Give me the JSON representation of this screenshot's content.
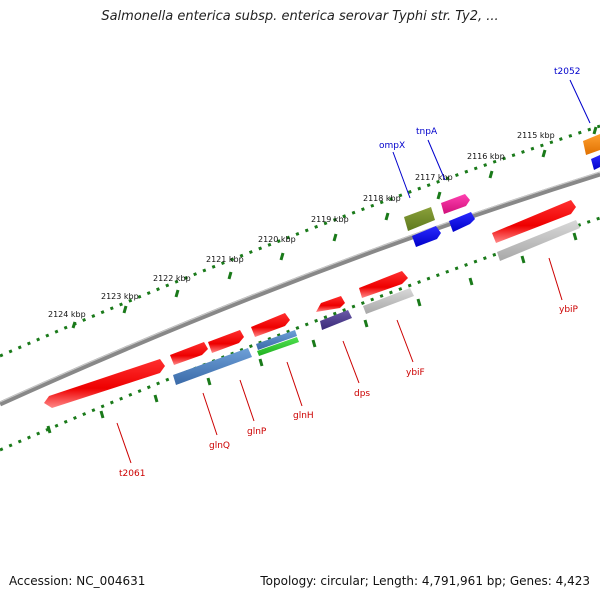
{
  "title": "Salmonella enterica subsp. enterica serovar Typhi str. Ty2, ...",
  "footer": {
    "accession": "Accession: NC_004631",
    "summary": "Topology: circular; Length: 4,791,961 bp; Genes: 4,423"
  },
  "scale": {
    "ticks": [
      "2115 kbp",
      "2116 kbp",
      "2117 kbp",
      "2118 kbp",
      "2119 kbp",
      "2120 kbp",
      "2121 kbp",
      "2122 kbp",
      "2123 kbp",
      "2124 kbp"
    ]
  },
  "labels": {
    "top": [
      "t2052",
      "tnpA",
      "ompX"
    ],
    "bottom": [
      "ybiP",
      "ybiF",
      "dps",
      "glnH",
      "glnP",
      "glnQ",
      "t2061"
    ]
  },
  "colors": {
    "gene": "#ff0000",
    "label_top": "#0000cc",
    "label_bottom": "#cc0000",
    "backbone": "#808080",
    "tick": "#1a7a1a"
  }
}
